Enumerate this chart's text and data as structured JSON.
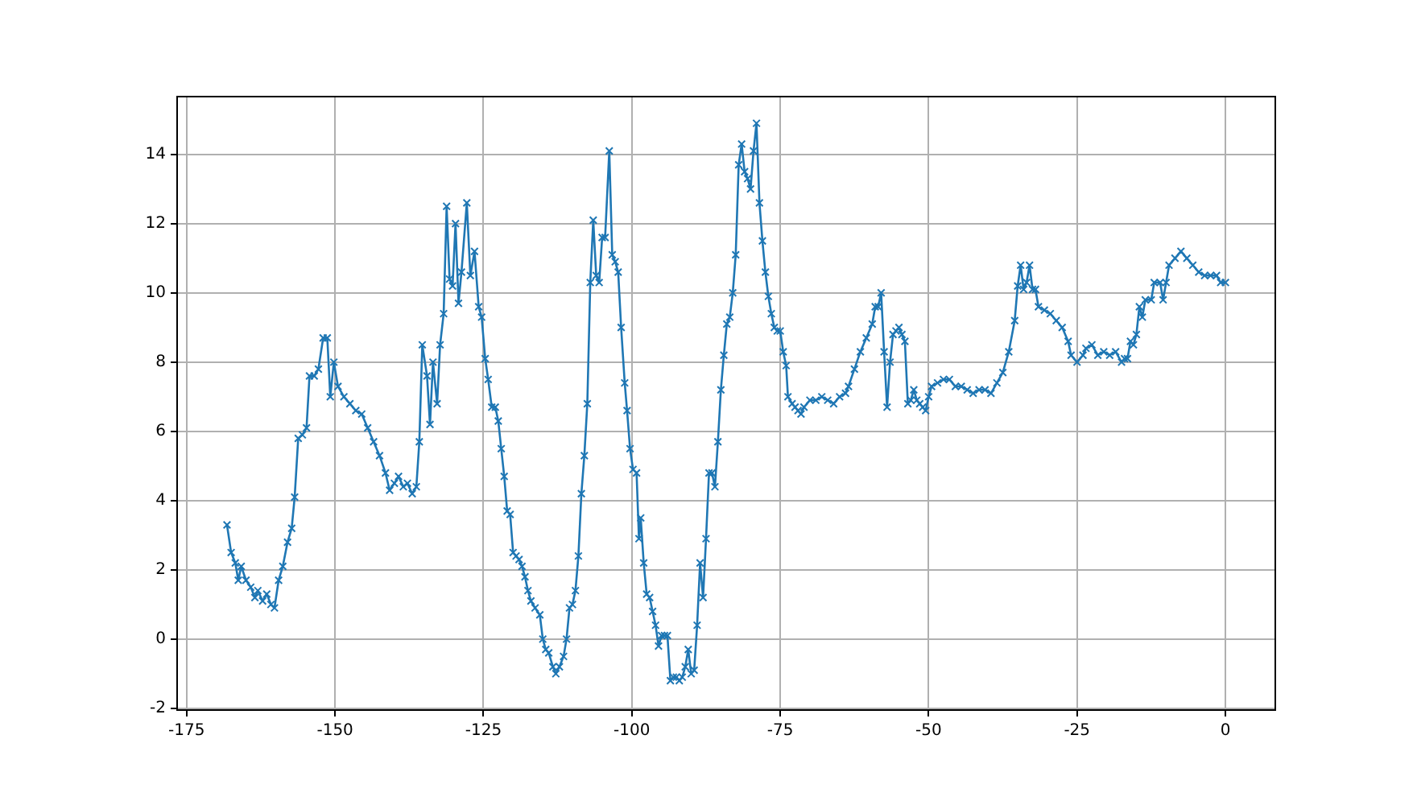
{
  "chart_data": {
    "type": "line",
    "marker": "cross",
    "grid": true,
    "legend": false,
    "xlim": [
      -176.6,
      8.4
    ],
    "ylim": [
      -2.05,
      15.67
    ],
    "xticks": [
      -175,
      -150,
      -125,
      -100,
      -75,
      -50,
      -25,
      0
    ],
    "yticks": [
      -2,
      0,
      2,
      4,
      6,
      8,
      10,
      12,
      14
    ],
    "series": [
      {
        "color": "#1f77b4",
        "x": [
          -168.2,
          -167.5,
          -166.8,
          -166.3,
          -165.8,
          -165,
          -164.2,
          -163.5,
          -163,
          -162.2,
          -161.5,
          -160.8,
          -160.2,
          -159.5,
          -158.8,
          -158,
          -157.3,
          -156.8,
          -156.2,
          -155.5,
          -154.8,
          -154.3,
          -153.5,
          -152.8,
          -152,
          -151.3,
          -150.8,
          -150.2,
          -149.5,
          -148.5,
          -147.5,
          -146.5,
          -145.5,
          -144.5,
          -143.5,
          -142.5,
          -141.5,
          -140.8,
          -140,
          -139.3,
          -138.5,
          -137.8,
          -137,
          -136.3,
          -135.8,
          -135.3,
          -134.5,
          -134,
          -133.5,
          -132.8,
          -132.3,
          -131.7,
          -131.2,
          -130.7,
          -130.2,
          -129.7,
          -129.2,
          -128.7,
          -127.8,
          -127.2,
          -126.5,
          -125.8,
          -125.3,
          -124.7,
          -124.2,
          -123.6,
          -123,
          -122.5,
          -122,
          -121.5,
          -121,
          -120.5,
          -120,
          -119.5,
          -119,
          -118.5,
          -118,
          -117.5,
          -117,
          -116.3,
          -115.5,
          -115,
          -114.5,
          -114,
          -113.3,
          -112.8,
          -112.2,
          -111.5,
          -111,
          -110.5,
          -110,
          -109.5,
          -109,
          -108.5,
          -108,
          -107.5,
          -107,
          -106.5,
          -106,
          -105.5,
          -105,
          -104.5,
          -103.8,
          -103.3,
          -102.8,
          -102.3,
          -101.8,
          -101.2,
          -100.8,
          -100.3,
          -99.8,
          -99.2,
          -98.8,
          -98.5,
          -98,
          -97.5,
          -97,
          -96.5,
          -96,
          -95.5,
          -95,
          -94.5,
          -94,
          -93.5,
          -93,
          -92.5,
          -92,
          -91.5,
          -91,
          -90.5,
          -90,
          -89.5,
          -89,
          -88.5,
          -88,
          -87.5,
          -87,
          -86.5,
          -86,
          -85.5,
          -85,
          -84.5,
          -84,
          -83.5,
          -83,
          -82.5,
          -82,
          -81.5,
          -81,
          -80.5,
          -80,
          -79.5,
          -79,
          -78.5,
          -78,
          -77.5,
          -77,
          -76.5,
          -76,
          -75.5,
          -75,
          -74.5,
          -74,
          -73.7,
          -73,
          -72.5,
          -72,
          -71.5,
          -71,
          -70,
          -69,
          -68,
          -67,
          -66,
          -65,
          -64,
          -63.5,
          -62.5,
          -61.5,
          -60.5,
          -59.5,
          -59,
          -58.5,
          -58,
          -57.5,
          -57,
          -56.5,
          -56,
          -55.5,
          -55,
          -54.5,
          -54,
          -53.5,
          -53,
          -52.5,
          -52,
          -51.5,
          -51,
          -50.5,
          -50,
          -49.5,
          -48.5,
          -47.5,
          -46.5,
          -45.5,
          -44.5,
          -43.5,
          -42.5,
          -41.5,
          -40.5,
          -39.5,
          -38.5,
          -37.5,
          -36.5,
          -35.5,
          -35,
          -34.5,
          -34,
          -33.5,
          -33,
          -32.5,
          -32,
          -31.5,
          -30.5,
          -29.5,
          -28.5,
          -27.5,
          -26.5,
          -26,
          -25,
          -24,
          -23.5,
          -22.5,
          -21.5,
          -20.5,
          -19.5,
          -18.5,
          -17.5,
          -17,
          -16.5,
          -16,
          -15.5,
          -15,
          -14.5,
          -14,
          -13.5,
          -12.5,
          -12,
          -11,
          -10.5,
          -10,
          -9.5,
          -8.5,
          -7.5,
          -6.5,
          -5.5,
          -4.5,
          -3.5,
          -2.5,
          -1.5,
          -0.8,
          0
        ],
        "values": [
          3.3,
          2.5,
          2.2,
          1.7,
          2.1,
          1.7,
          1.5,
          1.2,
          1.4,
          1.1,
          1.3,
          1.0,
          0.9,
          1.7,
          2.1,
          2.8,
          3.2,
          4.1,
          5.8,
          5.9,
          6.1,
          7.6,
          7.6,
          7.8,
          8.7,
          8.7,
          7.0,
          8.0,
          7.3,
          7.0,
          6.8,
          6.6,
          6.5,
          6.1,
          5.7,
          5.3,
          4.8,
          4.3,
          4.5,
          4.7,
          4.4,
          4.5,
          4.2,
          4.4,
          5.7,
          8.5,
          7.6,
          6.2,
          8.0,
          6.8,
          8.5,
          9.4,
          12.5,
          10.4,
          10.2,
          12.0,
          9.7,
          10.6,
          12.6,
          10.5,
          11.2,
          9.6,
          9.3,
          8.1,
          7.5,
          6.7,
          6.7,
          6.3,
          5.5,
          4.7,
          3.7,
          3.6,
          2.5,
          2.4,
          2.3,
          2.1,
          1.8,
          1.4,
          1.1,
          0.9,
          0.7,
          0.0,
          -0.3,
          -0.4,
          -0.8,
          -1.0,
          -0.8,
          -0.5,
          0.0,
          0.9,
          1.0,
          1.4,
          2.4,
          4.2,
          5.3,
          6.8,
          10.3,
          12.1,
          10.5,
          10.3,
          11.6,
          11.6,
          14.1,
          11.1,
          10.9,
          10.6,
          9.0,
          7.4,
          6.6,
          5.5,
          4.9,
          4.8,
          2.9,
          3.5,
          2.2,
          1.3,
          1.2,
          0.8,
          0.4,
          -0.2,
          0.1,
          0.1,
          0.1,
          -1.2,
          -1.1,
          -1.1,
          -1.2,
          -1.1,
          -0.8,
          -0.3,
          -1.0,
          -0.9,
          0.4,
          2.2,
          1.2,
          2.9,
          4.8,
          4.8,
          4.4,
          5.7,
          7.2,
          8.2,
          9.1,
          9.3,
          10.0,
          11.1,
          13.7,
          14.3,
          13.5,
          13.3,
          13.0,
          14.1,
          14.9,
          12.6,
          11.5,
          10.6,
          9.9,
          9.4,
          9.0,
          8.9,
          8.9,
          8.3,
          7.9,
          7.0,
          6.8,
          6.7,
          6.6,
          6.5,
          6.7,
          6.9,
          6.9,
          7.0,
          6.9,
          6.8,
          7.0,
          7.1,
          7.3,
          7.8,
          8.3,
          8.7,
          9.1,
          9.6,
          9.6,
          10.0,
          8.3,
          6.7,
          8.0,
          8.8,
          8.9,
          9.0,
          8.8,
          8.6,
          6.8,
          6.9,
          7.2,
          6.9,
          6.8,
          6.7,
          6.6,
          7.0,
          7.3,
          7.4,
          7.5,
          7.5,
          7.3,
          7.3,
          7.2,
          7.1,
          7.2,
          7.2,
          7.1,
          7.4,
          7.7,
          8.3,
          9.2,
          10.2,
          10.8,
          10.1,
          10.3,
          10.8,
          10.1,
          10.1,
          9.6,
          9.5,
          9.4,
          9.2,
          9.0,
          8.6,
          8.2,
          8.0,
          8.2,
          8.4,
          8.5,
          8.2,
          8.3,
          8.2,
          8.3,
          8.0,
          8.1,
          8.1,
          8.6,
          8.5,
          8.8,
          9.6,
          9.3,
          9.8,
          9.8,
          10.3,
          10.3,
          9.8,
          10.3,
          10.8,
          11.0,
          11.2,
          11.0,
          10.8,
          10.6,
          10.5,
          10.5,
          10.5,
          10.3,
          10.3
        ]
      }
    ]
  }
}
